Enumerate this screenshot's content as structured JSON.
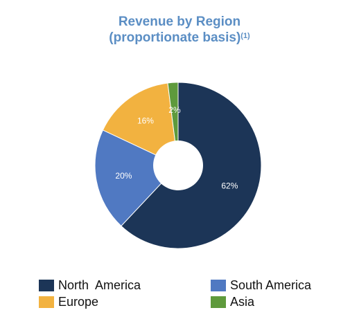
{
  "chart_data": {
    "type": "pie",
    "donut": true,
    "title": "Revenue by Region",
    "subtitle": "(proportionate basis)",
    "footnote_marker": "(1)",
    "slices": [
      {
        "label": "North  America",
        "value": 62,
        "value_label": "62%",
        "color": "#1c3557"
      },
      {
        "label": "South America",
        "value": 20,
        "value_label": "20%",
        "color": "#5079c2"
      },
      {
        "label": "Europe",
        "value": 16,
        "value_label": "16%",
        "color": "#f2b240"
      },
      {
        "label": "Asia",
        "value": 2,
        "value_label": "2%",
        "color": "#5e9a3c"
      }
    ],
    "legend_position": "bottom"
  },
  "colors": {
    "title": "#5b8ec4",
    "label_text": "#ffffff"
  }
}
